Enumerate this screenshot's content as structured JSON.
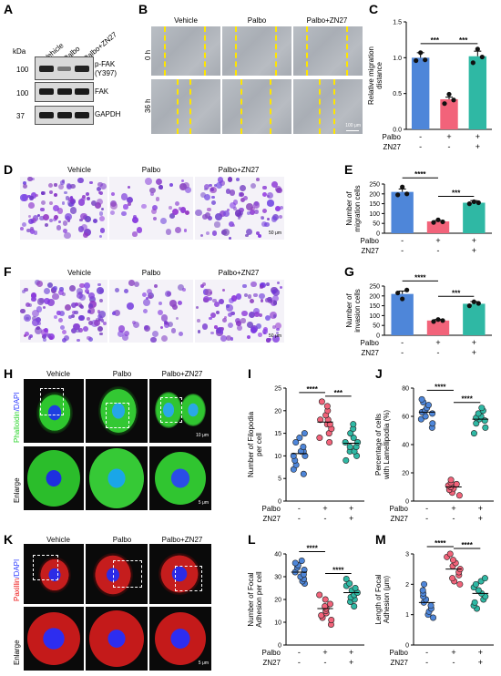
{
  "panels": {
    "A": "A",
    "B": "B",
    "C": "C",
    "D": "D",
    "E": "E",
    "F": "F",
    "G": "G",
    "H": "H",
    "I": "I",
    "J": "J",
    "K": "K",
    "L": "L",
    "M": "M"
  },
  "conditions": [
    "Vehicle",
    "Palbo",
    "Palbo+ZN27"
  ],
  "blot": {
    "kda_label": "kDa",
    "markers": [
      "100",
      "100",
      "37"
    ],
    "proteins": [
      "p-FAK",
      "(Y397)",
      "FAK",
      "GAPDH"
    ]
  },
  "scratch": {
    "rows": [
      "0 h",
      "36 h"
    ],
    "scalebar": "100 μm"
  },
  "transwell": {
    "scalebar": "50 μm"
  },
  "if_rows": {
    "stain_H": "Phalloidin",
    "stain_K": "Paxillin",
    "dapi": "/DAPI",
    "enlarge": "Enlarge",
    "scale": "10 μm",
    "scale2": "5 μm"
  },
  "groups": {
    "rowlabels": [
      "Palbo",
      "ZN27"
    ],
    "signs": [
      [
        "-",
        "+",
        "+"
      ],
      [
        "-",
        "-",
        "+"
      ]
    ]
  },
  "colors": {
    "vehicle": "#4e86d9",
    "palbo": "#f2637a",
    "zn27": "#2fb8a4"
  },
  "chart_data": [
    {
      "id": "C",
      "type": "bar",
      "ylabel": "Relative migration distance",
      "ylim": [
        0,
        1.5
      ],
      "yticks": [
        "0.0",
        "0.5",
        "1.0",
        "1.5"
      ],
      "values": [
        1.0,
        0.42,
        1.02
      ],
      "points": [
        [
          0.96,
          1.07,
          0.97
        ],
        [
          0.36,
          0.49,
          0.41
        ],
        [
          0.93,
          1.12,
          1.01
        ]
      ],
      "sig": [
        "***",
        "***"
      ]
    },
    {
      "id": "E",
      "type": "bar",
      "ylabel": "Number of migration cells",
      "ylim": [
        0,
        250
      ],
      "yticks": [
        "0",
        "50",
        "100",
        "150",
        "200",
        "250"
      ],
      "values": [
        210,
        60,
        155
      ],
      "points": [
        [
          195,
          235,
          200
        ],
        [
          55,
          68,
          58
        ],
        [
          150,
          160,
          155
        ]
      ],
      "sig": [
        "****",
        "***"
      ]
    },
    {
      "id": "G",
      "type": "bar",
      "ylabel": "Number of invasion cells",
      "ylim": [
        0,
        250
      ],
      "yticks": [
        "0",
        "50",
        "100",
        "150",
        "200",
        "250"
      ],
      "values": [
        210,
        75,
        160
      ],
      "points": [
        [
          215,
          185,
          230
        ],
        [
          70,
          80,
          75
        ],
        [
          150,
          170,
          162
        ]
      ],
      "sig": [
        "****",
        "***"
      ]
    },
    {
      "id": "I",
      "type": "scatter",
      "ylabel": "Number of Filopodia per cell",
      "ylim": [
        0,
        25
      ],
      "yticks": [
        "0",
        "5",
        "10",
        "15",
        "20",
        "25"
      ],
      "means": [
        10.5,
        17.5,
        12.8
      ],
      "points": [
        [
          6,
          7,
          8,
          9,
          10,
          10,
          11,
          11,
          12,
          13,
          14,
          15
        ],
        [
          13,
          14,
          15,
          16,
          17,
          17,
          18,
          18,
          19,
          20,
          21,
          22
        ],
        [
          9,
          10,
          11,
          11,
          12,
          12,
          13,
          13,
          14,
          15,
          16,
          17
        ]
      ],
      "sig": [
        "****",
        "***"
      ]
    },
    {
      "id": "J",
      "type": "scatter",
      "ylabel": "Percentage of cells with Lamellipodia (%)",
      "ylim": [
        0,
        80
      ],
      "yticks": [
        "0",
        "20",
        "40",
        "60",
        "80"
      ],
      "means": [
        63,
        10,
        58
      ],
      "points": [
        [
          52,
          55,
          58,
          60,
          62,
          63,
          64,
          66,
          68,
          70,
          72
        ],
        [
          4,
          6,
          8,
          9,
          10,
          11,
          12,
          13,
          15
        ],
        [
          48,
          52,
          55,
          57,
          58,
          59,
          60,
          62,
          64,
          66
        ]
      ],
      "sig": [
        "****",
        "****"
      ]
    },
    {
      "id": "L",
      "type": "scatter",
      "ylabel": "Number of Focal Adhesion per cell",
      "ylim": [
        0,
        40
      ],
      "yticks": [
        "0",
        "10",
        "20",
        "30",
        "40"
      ],
      "means": [
        32,
        16,
        23
      ],
      "points": [
        [
          27,
          28,
          29,
          30,
          31,
          32,
          33,
          34,
          35,
          36,
          37
        ],
        [
          9,
          11,
          12,
          13,
          14,
          15,
          16,
          17,
          18,
          20,
          22
        ],
        [
          17,
          19,
          20,
          21,
          22,
          23,
          24,
          25,
          26,
          27,
          29
        ]
      ],
      "sig": [
        "****",
        "****"
      ]
    },
    {
      "id": "M",
      "type": "scatter",
      "ylabel": "Length of Focal Adhesion (μm)",
      "ylim": [
        0,
        3
      ],
      "yticks": [
        "0",
        "1",
        "2",
        "3"
      ],
      "means": [
        1.4,
        2.5,
        1.7
      ],
      "points": [
        [
          0.9,
          1.0,
          1.1,
          1.2,
          1.3,
          1.4,
          1.5,
          1.6,
          1.7,
          1.8,
          2.0
        ],
        [
          2.0,
          2.1,
          2.2,
          2.3,
          2.4,
          2.5,
          2.6,
          2.7,
          2.8,
          2.9,
          3.0
        ],
        [
          1.2,
          1.3,
          1.4,
          1.5,
          1.6,
          1.7,
          1.8,
          1.9,
          2.0,
          2.1,
          2.2
        ]
      ],
      "sig": [
        "****",
        "****"
      ]
    }
  ]
}
